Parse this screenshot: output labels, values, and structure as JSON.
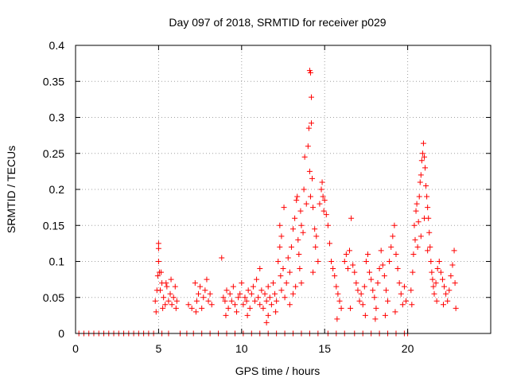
{
  "chart_data": {
    "type": "scatter",
    "title": "Day 097 of 2018, SRMTID for receiver p029",
    "xlabel": "GPS time / hours",
    "ylabel": "SRMTID / TECUs",
    "xlim": [
      0,
      25
    ],
    "ylim": [
      0,
      0.4
    ],
    "xticks": [
      0,
      5,
      10,
      15,
      20
    ],
    "xtick_labels": [
      "0",
      "5",
      "10",
      "15",
      "20"
    ],
    "yticks": [
      0,
      0.05,
      0.1,
      0.15,
      0.2,
      0.25,
      0.3,
      0.35,
      0.4
    ],
    "ytick_labels": [
      "0",
      "0.05",
      "0.1",
      "0.15",
      "0.2",
      "0.25",
      "0.3",
      "0.35",
      "0.4"
    ],
    "grid": true,
    "marker": "+",
    "color": "#ff0000",
    "series": [
      {
        "name": "SRMTID",
        "points": [
          [
            0.2,
            0
          ],
          [
            0.5,
            0
          ],
          [
            0.8,
            0
          ],
          [
            1.1,
            0
          ],
          [
            1.4,
            0
          ],
          [
            1.7,
            0
          ],
          [
            2.0,
            0
          ],
          [
            2.3,
            0
          ],
          [
            2.6,
            0
          ],
          [
            2.9,
            0
          ],
          [
            3.2,
            0
          ],
          [
            3.5,
            0
          ],
          [
            3.8,
            0
          ],
          [
            4.1,
            0
          ],
          [
            4.4,
            0
          ],
          [
            4.7,
            0
          ],
          [
            5.2,
            0
          ],
          [
            5.6,
            0
          ],
          [
            6.3,
            0
          ],
          [
            6.7,
            0
          ],
          [
            7.1,
            0
          ],
          [
            7.6,
            0
          ],
          [
            8.1,
            0
          ],
          [
            8.6,
            0
          ],
          [
            9.1,
            0
          ],
          [
            9.6,
            0
          ],
          [
            10.1,
            0
          ],
          [
            10.6,
            0
          ],
          [
            11.1,
            0
          ],
          [
            11.6,
            0
          ],
          [
            12.1,
            0
          ],
          [
            12.6,
            0
          ],
          [
            13.1,
            0
          ],
          [
            13.6,
            0
          ],
          [
            14.1,
            0
          ],
          [
            14.6,
            0
          ],
          [
            15.2,
            0
          ],
          [
            15.7,
            0
          ],
          [
            16.2,
            0
          ],
          [
            16.8,
            0
          ],
          [
            17.3,
            0
          ],
          [
            17.8,
            0
          ],
          [
            18.3,
            0
          ],
          [
            18.8,
            0
          ],
          [
            19.3,
            0
          ],
          [
            19.8,
            0
          ],
          [
            20.0,
            0
          ],
          [
            4.8,
            0.045
          ],
          [
            4.9,
            0.06
          ],
          [
            4.95,
            0.08
          ],
          [
            5.0,
            0.1
          ],
          [
            5.0,
            0.125
          ],
          [
            5.0,
            0.118
          ],
          [
            5.05,
            0.085
          ],
          [
            5.1,
            0.06
          ],
          [
            5.2,
            0.07
          ],
          [
            5.3,
            0.05
          ],
          [
            5.4,
            0.04
          ],
          [
            5.5,
            0.065
          ],
          [
            5.6,
            0.045
          ],
          [
            5.7,
            0.055
          ],
          [
            5.8,
            0.04
          ],
          [
            5.9,
            0.05
          ],
          [
            6.0,
            0.065
          ],
          [
            6.1,
            0.045
          ],
          [
            5.15,
            0.085
          ],
          [
            5.25,
            0.035
          ],
          [
            5.45,
            0.07
          ],
          [
            5.75,
            0.075
          ],
          [
            6.05,
            0.035
          ],
          [
            4.85,
            0.03
          ],
          [
            6.8,
            0.04
          ],
          [
            7.0,
            0.035
          ],
          [
            7.2,
            0.07
          ],
          [
            7.3,
            0.045
          ],
          [
            7.4,
            0.055
          ],
          [
            7.5,
            0.065
          ],
          [
            7.6,
            0.035
          ],
          [
            7.7,
            0.05
          ],
          [
            7.8,
            0.06
          ],
          [
            7.9,
            0.075
          ],
          [
            8.0,
            0.045
          ],
          [
            8.1,
            0.055
          ],
          [
            8.2,
            0.04
          ],
          [
            7.25,
            0.03
          ],
          [
            8.8,
            0.105
          ],
          [
            8.9,
            0.05
          ],
          [
            9.0,
            0.045
          ],
          [
            9.1,
            0.06
          ],
          [
            9.2,
            0.035
          ],
          [
            9.3,
            0.055
          ],
          [
            9.4,
            0.045
          ],
          [
            9.5,
            0.065
          ],
          [
            9.6,
            0.04
          ],
          [
            9.7,
            0.03
          ],
          [
            9.8,
            0.05
          ],
          [
            9.9,
            0.055
          ],
          [
            10.0,
            0.07
          ],
          [
            10.1,
            0.04
          ],
          [
            10.2,
            0.05
          ],
          [
            10.3,
            0.045
          ],
          [
            10.4,
            0.06
          ],
          [
            10.5,
            0.035
          ],
          [
            10.6,
            0.055
          ],
          [
            10.7,
            0.065
          ],
          [
            10.8,
            0.045
          ],
          [
            10.9,
            0.075
          ],
          [
            11.0,
            0.05
          ],
          [
            11.1,
            0.04
          ],
          [
            11.2,
            0.06
          ],
          [
            11.3,
            0.035
          ],
          [
            11.4,
            0.055
          ],
          [
            11.5,
            0.045
          ],
          [
            11.6,
            0.065
          ],
          [
            11.7,
            0.05
          ],
          [
            11.8,
            0.04
          ],
          [
            11.9,
            0.07
          ],
          [
            12.0,
            0.055
          ],
          [
            12.1,
            0.045
          ],
          [
            11.5,
            0.015
          ],
          [
            11.6,
            0.025
          ],
          [
            11.1,
            0.09
          ],
          [
            9.05,
            0.025
          ],
          [
            10.35,
            0.025
          ],
          [
            12.05,
            0.03
          ],
          [
            12.2,
            0.1
          ],
          [
            12.3,
            0.12
          ],
          [
            12.3,
            0.15
          ],
          [
            12.35,
            0.08
          ],
          [
            12.4,
            0.135
          ],
          [
            12.4,
            0.06
          ],
          [
            12.5,
            0.09
          ],
          [
            12.6,
            0.05
          ],
          [
            12.7,
            0.07
          ],
          [
            12.8,
            0.105
          ],
          [
            12.9,
            0.085
          ],
          [
            13.0,
            0.12
          ],
          [
            13.1,
            0.145
          ],
          [
            13.2,
            0.16
          ],
          [
            13.3,
            0.185
          ],
          [
            13.35,
            0.19
          ],
          [
            13.4,
            0.13
          ],
          [
            13.45,
            0.11
          ],
          [
            13.5,
            0.09
          ],
          [
            13.55,
            0.17
          ],
          [
            13.6,
            0.15
          ],
          [
            13.7,
            0.14
          ],
          [
            13.75,
            0.2
          ],
          [
            13.8,
            0.245
          ],
          [
            13.9,
            0.18
          ],
          [
            14.0,
            0.26
          ],
          [
            14.05,
            0.285
          ],
          [
            14.1,
            0.225
          ],
          [
            14.15,
            0.19
          ],
          [
            14.1,
            0.365
          ],
          [
            14.15,
            0.362
          ],
          [
            14.2,
            0.328
          ],
          [
            14.2,
            0.292
          ],
          [
            14.25,
            0.215
          ],
          [
            14.3,
            0.175
          ],
          [
            14.4,
            0.145
          ],
          [
            14.45,
            0.12
          ],
          [
            14.5,
            0.135
          ],
          [
            14.6,
            0.1
          ],
          [
            14.7,
            0.18
          ],
          [
            14.8,
            0.2
          ],
          [
            14.85,
            0.21
          ],
          [
            14.9,
            0.19
          ],
          [
            14.95,
            0.17
          ],
          [
            15.0,
            0.185
          ],
          [
            15.1,
            0.165
          ],
          [
            15.2,
            0.15
          ],
          [
            15.3,
            0.125
          ],
          [
            15.4,
            0.1
          ],
          [
            15.5,
            0.09
          ],
          [
            15.6,
            0.08
          ],
          [
            15.7,
            0.065
          ],
          [
            15.8,
            0.055
          ],
          [
            15.9,
            0.045
          ],
          [
            16.0,
            0.035
          ],
          [
            15.75,
            0.02
          ],
          [
            12.9,
            0.04
          ],
          [
            13.1,
            0.055
          ],
          [
            13.6,
            0.07
          ],
          [
            14.3,
            0.085
          ],
          [
            12.55,
            0.175
          ],
          [
            13.25,
            0.065
          ],
          [
            16.2,
            0.1
          ],
          [
            16.3,
            0.11
          ],
          [
            16.4,
            0.09
          ],
          [
            16.5,
            0.115
          ],
          [
            16.6,
            0.16
          ],
          [
            16.7,
            0.095
          ],
          [
            16.8,
            0.085
          ],
          [
            16.9,
            0.07
          ],
          [
            17.0,
            0.06
          ],
          [
            17.1,
            0.045
          ],
          [
            17.2,
            0.055
          ],
          [
            17.3,
            0.04
          ],
          [
            17.4,
            0.065
          ],
          [
            17.5,
            0.1
          ],
          [
            17.6,
            0.11
          ],
          [
            17.7,
            0.085
          ],
          [
            17.8,
            0.075
          ],
          [
            17.9,
            0.06
          ],
          [
            18.0,
            0.05
          ],
          [
            18.1,
            0.035
          ],
          [
            18.2,
            0.07
          ],
          [
            18.3,
            0.09
          ],
          [
            18.4,
            0.115
          ],
          [
            18.5,
            0.095
          ],
          [
            18.6,
            0.08
          ],
          [
            18.7,
            0.06
          ],
          [
            18.8,
            0.045
          ],
          [
            18.9,
            0.1
          ],
          [
            19.0,
            0.12
          ],
          [
            19.1,
            0.135
          ],
          [
            19.2,
            0.15
          ],
          [
            19.3,
            0.11
          ],
          [
            19.4,
            0.09
          ],
          [
            19.5,
            0.07
          ],
          [
            19.6,
            0.055
          ],
          [
            19.7,
            0.04
          ],
          [
            19.8,
            0.065
          ],
          [
            19.9,
            0.045
          ],
          [
            17.45,
            0.025
          ],
          [
            18.05,
            0.02
          ],
          [
            16.55,
            0.035
          ],
          [
            18.65,
            0.025
          ],
          [
            19.25,
            0.03
          ],
          [
            20.2,
            0.06
          ],
          [
            20.3,
            0.085
          ],
          [
            20.35,
            0.11
          ],
          [
            20.4,
            0.15
          ],
          [
            20.45,
            0.13
          ],
          [
            20.5,
            0.17
          ],
          [
            20.55,
            0.18
          ],
          [
            20.6,
            0.12
          ],
          [
            20.65,
            0.155
          ],
          [
            20.7,
            0.19
          ],
          [
            20.75,
            0.21
          ],
          [
            20.8,
            0.22
          ],
          [
            20.85,
            0.24
          ],
          [
            20.9,
            0.25
          ],
          [
            20.95,
            0.264
          ],
          [
            21.0,
            0.245
          ],
          [
            21.05,
            0.23
          ],
          [
            21.1,
            0.205
          ],
          [
            21.15,
            0.19
          ],
          [
            21.2,
            0.175
          ],
          [
            21.25,
            0.16
          ],
          [
            21.3,
            0.14
          ],
          [
            21.35,
            0.12
          ],
          [
            21.4,
            0.1
          ],
          [
            21.45,
            0.085
          ],
          [
            21.5,
            0.075
          ],
          [
            21.55,
            0.065
          ],
          [
            21.6,
            0.055
          ],
          [
            21.7,
            0.07
          ],
          [
            21.8,
            0.09
          ],
          [
            21.9,
            0.1
          ],
          [
            22.0,
            0.085
          ],
          [
            22.1,
            0.075
          ],
          [
            22.2,
            0.065
          ],
          [
            22.3,
            0.055
          ],
          [
            22.4,
            0.045
          ],
          [
            22.5,
            0.06
          ],
          [
            22.6,
            0.08
          ],
          [
            22.7,
            0.095
          ],
          [
            22.8,
            0.115
          ],
          [
            22.85,
            0.07
          ],
          [
            22.9,
            0.035
          ],
          [
            21.75,
            0.045
          ],
          [
            22.15,
            0.04
          ],
          [
            20.25,
            0.04
          ],
          [
            21.0,
            0.16
          ],
          [
            20.8,
            0.135
          ],
          [
            21.2,
            0.115
          ]
        ]
      }
    ]
  }
}
